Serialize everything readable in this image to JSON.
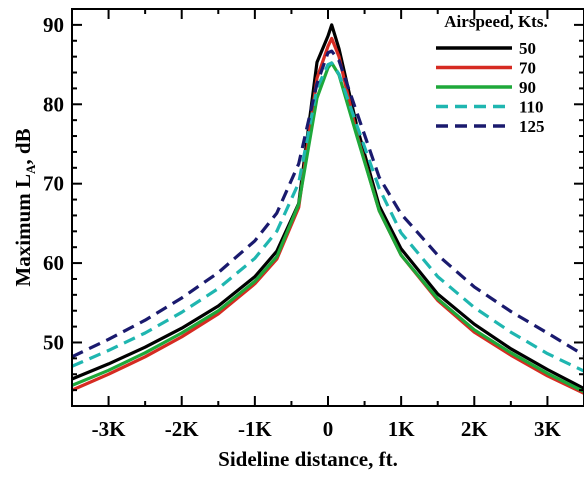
{
  "chart_data": {
    "type": "line",
    "xlabel": "Sideline distance, ft.",
    "ylabel_main": "Maximum L",
    "ylabel_sub": "A",
    "ylabel_suffix": ", dB",
    "xlim": [
      -3500,
      3500
    ],
    "ylim": [
      42,
      92
    ],
    "x_ticks": [
      {
        "value": -3000,
        "label": "-3K"
      },
      {
        "value": -2000,
        "label": "-2K"
      },
      {
        "value": -1000,
        "label": "-1K"
      },
      {
        "value": 0,
        "label": "0"
      },
      {
        "value": 1000,
        "label": "1K"
      },
      {
        "value": 2000,
        "label": "2K"
      },
      {
        "value": 3000,
        "label": "3K"
      }
    ],
    "y_ticks": [
      {
        "value": 50,
        "label": "50"
      },
      {
        "value": 60,
        "label": "60"
      },
      {
        "value": 70,
        "label": "70"
      },
      {
        "value": 80,
        "label": "80"
      },
      {
        "value": 90,
        "label": "90"
      }
    ],
    "legend": {
      "title": "Airspeed, Kts.",
      "position": "top-right"
    },
    "grid": false,
    "series": [
      {
        "name": "50",
        "color": "#000000",
        "dash": "solid",
        "x": [
          -3500,
          -3000,
          -2500,
          -2000,
          -1500,
          -1000,
          -700,
          -400,
          -150,
          0,
          50,
          150,
          400,
          700,
          1000,
          1500,
          2000,
          2500,
          3000,
          3500
        ],
        "y": [
          45.4,
          47.3,
          49.4,
          51.8,
          54.6,
          58.3,
          61.5,
          67.5,
          85.3,
          88.6,
          90.0,
          87.0,
          77.0,
          67.2,
          61.8,
          56.1,
          52.3,
          49.2,
          46.6,
          44.2
        ]
      },
      {
        "name": "70",
        "color": "#d62b22",
        "dash": "solid",
        "x": [
          -3500,
          -3000,
          -2500,
          -2000,
          -1500,
          -1000,
          -700,
          -400,
          -150,
          0,
          50,
          150,
          400,
          700,
          1000,
          1500,
          2000,
          2500,
          3000,
          3500
        ],
        "y": [
          44.0,
          46.0,
          48.2,
          50.7,
          53.6,
          57.4,
          60.5,
          67.0,
          83.3,
          87.3,
          88.3,
          86.0,
          76.0,
          66.6,
          61.0,
          55.3,
          51.3,
          48.4,
          45.8,
          43.6
        ]
      },
      {
        "name": "90",
        "color": "#1ea83a",
        "dash": "solid",
        "x": [
          -3500,
          -3000,
          -2500,
          -2000,
          -1500,
          -1000,
          -700,
          -400,
          -150,
          0,
          50,
          150,
          400,
          700,
          1000,
          1500,
          2000,
          2500,
          3000,
          3500
        ],
        "y": [
          44.6,
          46.5,
          48.7,
          51.2,
          54.0,
          57.7,
          60.8,
          67.4,
          80.8,
          84.6,
          85.2,
          83.7,
          75.8,
          66.6,
          61.0,
          55.5,
          51.6,
          48.7,
          46.1,
          43.8
        ]
      },
      {
        "name": "110",
        "color": "#1fb6b0",
        "dash": "dash",
        "x": [
          -3500,
          -3000,
          -2500,
          -2000,
          -1500,
          -1000,
          -700,
          -400,
          -150,
          0,
          50,
          150,
          400,
          700,
          1000,
          1500,
          2000,
          2500,
          3000,
          3500
        ],
        "y": [
          47.0,
          49.0,
          51.2,
          53.8,
          56.8,
          60.6,
          64.0,
          70.1,
          82.0,
          85.0,
          85.2,
          83.8,
          77.2,
          69.4,
          63.8,
          58.3,
          54.4,
          51.3,
          48.6,
          46.4
        ]
      },
      {
        "name": "125",
        "color": "#1a1a6e",
        "dash": "dash",
        "x": [
          -3500,
          -3000,
          -2500,
          -2000,
          -1500,
          -1000,
          -700,
          -400,
          -150,
          0,
          50,
          150,
          400,
          700,
          1000,
          1500,
          2000,
          2500,
          3000,
          3500
        ],
        "y": [
          48.2,
          50.4,
          52.8,
          55.6,
          58.8,
          62.8,
          66.3,
          72.5,
          82.6,
          86.5,
          86.7,
          85.5,
          78.8,
          70.8,
          66.2,
          61.0,
          57.0,
          53.9,
          51.2,
          48.4
        ]
      }
    ]
  }
}
